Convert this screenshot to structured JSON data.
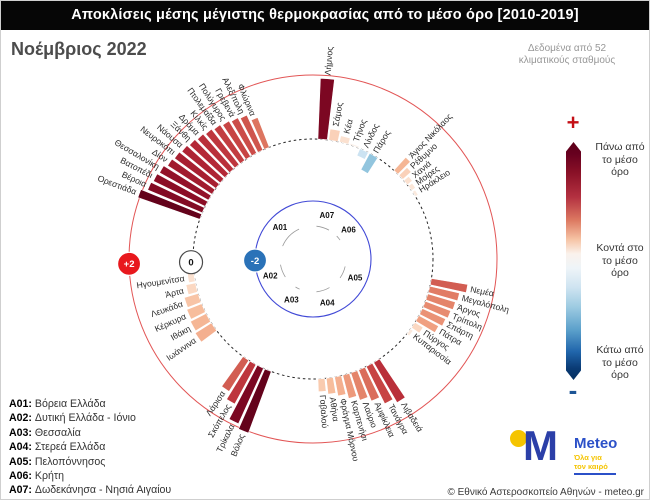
{
  "header": {
    "title": "Αποκλίσεις μέσης μέγιστης θερμοκρασίας από το μέσο όρο [2010-2019]",
    "period": "Νοέμβριος 2022",
    "data_note": "Δεδομένα από 52\nκλιματικούς σταθμούς"
  },
  "scale_legend": {
    "plus": "+",
    "minus": "-",
    "above": "Πάνω από\nτο μέσο\nόρο",
    "near": "Κοντά στο\nτο μέσο\nόρο",
    "below": "Κάτω από\nτο μέσο\nόρο",
    "color_top": "#67001f",
    "color_mid": "#f7f3f0",
    "color_bottom": "#053061"
  },
  "logo": {
    "brand": "Meteo",
    "tagline": "Όλα για\nτον καιρό",
    "m_glyph": "M",
    "blue": "#2b3fa8",
    "brand_blue": "#2b50c8",
    "yellow": "#f5c400"
  },
  "footer": {
    "copyright": "© Εθνικό Αστεροσκοπείο Αθηνών - meteo.gr"
  },
  "chart_data": {
    "type": "polar_bar",
    "title": "Αποκλίσεις μέσης μέγιστης θερμοκρασίας από το μέσο όρο [2010-2019] — Νοέμβριος 2022",
    "units": "°C",
    "radial_range": [
      -2,
      2
    ],
    "grid": {
      "zero_ring": "dashed-black",
      "outer_ring": "red",
      "inner_ring": "blue"
    },
    "legend_position": "right",
    "ring_markers": [
      {
        "label": "+2",
        "value": 2,
        "fill": "#e8181d",
        "text": "#ffffff"
      },
      {
        "label": "0",
        "value": 0,
        "fill": "#ffffff",
        "text": "#111111"
      },
      {
        "label": "-2",
        "value": -2,
        "fill": "#2a72b8",
        "text": "#ffffff"
      }
    ],
    "regions": [
      {
        "code": "A01",
        "label": "Βόρεια Ελλάδα",
        "sector_deg": [
          289,
          339
        ]
      },
      {
        "code": "A02",
        "label": "Δυτική Ελλάδα - Ιόνιο",
        "sector_deg": [
          233,
          264
        ]
      },
      {
        "code": "A03",
        "label": "Θεσσαλία",
        "sector_deg": [
          200,
          216
        ]
      },
      {
        "code": "A04",
        "label": "Στερεά Ελλάδα",
        "sector_deg": [
          146,
          178
        ]
      },
      {
        "code": "A05",
        "label": "Πελοπόννησος",
        "sector_deg": [
          99,
          129
        ]
      },
      {
        "code": "A06",
        "label": "Κρήτη",
        "sector_deg": [
          42,
          59
        ]
      },
      {
        "code": "A07",
        "label": "Δωδεκάνησα - Νησιά Αιγαίου",
        "sector_deg": [
          2,
          33
        ]
      }
    ],
    "stations": [
      {
        "name": "Λήμνος",
        "region": "A07",
        "value": 1.9
      },
      {
        "name": "Σάμος",
        "region": "A07",
        "value": 0.35
      },
      {
        "name": "Κέα",
        "region": "A07",
        "value": 0.2
      },
      {
        "name": "Τήνος",
        "region": "A07",
        "value": 0.05
      },
      {
        "name": "Λίνδος",
        "region": "A07",
        "value": -0.25
      },
      {
        "name": "Πάρος",
        "region": "A07",
        "value": -0.6
      },
      {
        "name": "Άγιος Νικόλαος",
        "region": "A06",
        "value": 0.55
      },
      {
        "name": "Ρέθυμνο",
        "region": "A06",
        "value": 0.35
      },
      {
        "name": "Χανιά",
        "region": "A06",
        "value": 0.2
      },
      {
        "name": "Μοίρες",
        "region": "A06",
        "value": 0.15
      },
      {
        "name": "Ηράκλειο",
        "region": "A06",
        "value": 0.1
      },
      {
        "name": "Νεμέα",
        "region": "A05",
        "value": 1.15
      },
      {
        "name": "Μεγαλόπολη",
        "region": "A05",
        "value": 0.95
      },
      {
        "name": "Άργος",
        "region": "A05",
        "value": 0.9
      },
      {
        "name": "Τρίπολη",
        "region": "A05",
        "value": 0.85
      },
      {
        "name": "Σπάρτη",
        "region": "A05",
        "value": 0.8
      },
      {
        "name": "Πάτρα",
        "region": "A05",
        "value": 0.7
      },
      {
        "name": "Πύργος",
        "region": "A05",
        "value": 0.3
      },
      {
        "name": "Κυπαρισσία",
        "region": "A05",
        "value": 0.1
      },
      {
        "name": "Λιβαδειά",
        "region": "A04",
        "value": 1.45
      },
      {
        "name": "Τανάγρα",
        "region": "A04",
        "value": 1.3
      },
      {
        "name": "Αμφίκλεια",
        "region": "A04",
        "value": 1.05
      },
      {
        "name": "Λαύριο",
        "region": "A04",
        "value": 0.9
      },
      {
        "name": "Καρπενήσι",
        "region": "A04",
        "value": 0.75
      },
      {
        "name": "Φράγμα Μόρνου",
        "region": "A04",
        "value": 0.6
      },
      {
        "name": "Αθήνα",
        "region": "A04",
        "value": 0.5
      },
      {
        "name": "Γαβαλού",
        "region": "A04",
        "value": 0.4
      },
      {
        "name": "Βόλος",
        "region": "A03",
        "value": 2.05
      },
      {
        "name": "Τρίκαλα",
        "region": "A03",
        "value": 1.9
      },
      {
        "name": "Σκόπελος",
        "region": "A03",
        "value": 1.4
      },
      {
        "name": "Λάρισα",
        "region": "A03",
        "value": 1.15
      },
      {
        "name": "Ιωάννινα",
        "region": "A02",
        "value": 0.6
      },
      {
        "name": "Ιθάκη",
        "region": "A02",
        "value": 0.55
      },
      {
        "name": "Κέρκυρα",
        "region": "A02",
        "value": 0.5
      },
      {
        "name": "Λευκάδα",
        "region": "A02",
        "value": 0.45
      },
      {
        "name": "Άρτα",
        "region": "A02",
        "value": 0.3
      },
      {
        "name": "Ηγουμενίτσα",
        "region": "A02",
        "value": 0.2
      },
      {
        "name": "Ορεστιάδα",
        "region": "A01",
        "value": 2.05
      },
      {
        "name": "Βέροια",
        "region": "A01",
        "value": 1.85
      },
      {
        "name": "Βατοπέδι",
        "region": "A01",
        "value": 1.8
      },
      {
        "name": "Θεσσαλονίκη",
        "region": "A01",
        "value": 1.75
      },
      {
        "name": "Δίον",
        "region": "A01",
        "value": 1.65
      },
      {
        "name": "Νευροκόπι",
        "region": "A01",
        "value": 1.6
      },
      {
        "name": "Νάουσα",
        "region": "A01",
        "value": 1.55
      },
      {
        "name": "Ξάνθη",
        "region": "A01",
        "value": 1.5
      },
      {
        "name": "Δράμα",
        "region": "A01",
        "value": 1.45
      },
      {
        "name": "Κιλκίς",
        "region": "A01",
        "value": 1.4
      },
      {
        "name": "Πτολεμαΐδα",
        "region": "A01",
        "value": 1.35
      },
      {
        "name": "Πολύγυρος",
        "region": "A01",
        "value": 1.3
      },
      {
        "name": "Γρεβενά",
        "region": "A01",
        "value": 1.25
      },
      {
        "name": "Αλεξ/πολη",
        "region": "A01",
        "value": 1.2
      },
      {
        "name": "Φλώρινα",
        "region": "A01",
        "value": 1.0
      }
    ]
  }
}
